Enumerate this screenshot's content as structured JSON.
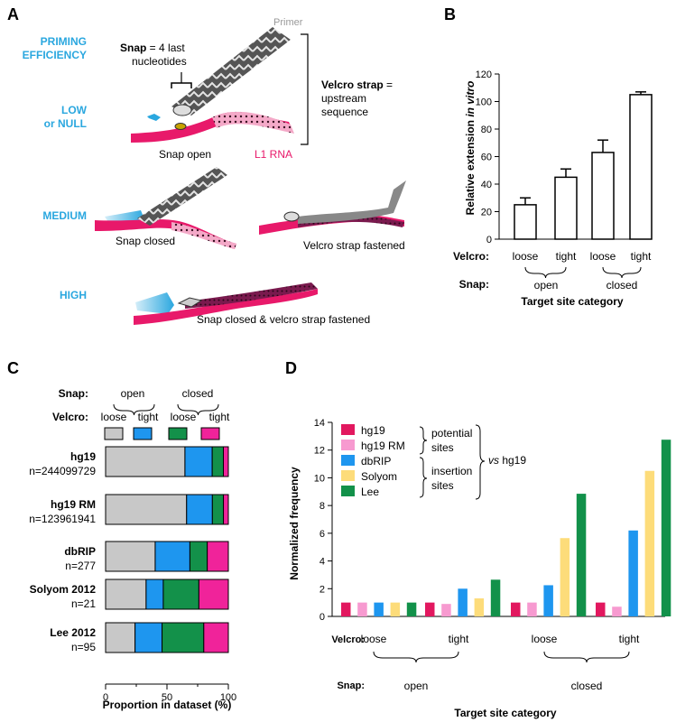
{
  "panel_a": {
    "letter": "A",
    "priming_label_1": "PRIMING",
    "priming_label_2": "EFFICIENCY",
    "low_label_1": "LOW",
    "low_label_2": "or NULL",
    "medium_label": "MEDIUM",
    "high_label": "HIGH",
    "snap_note_bold": "Snap",
    "snap_note_rest": " = 4 last",
    "snap_note_line2": "nucleotides",
    "primer_label": "Primer",
    "velcro_note_bold": "Velcro strap",
    "velcro_note_rest": " =",
    "velcro_note_line2": "upstream",
    "velcro_note_line3": "sequence",
    "snap_open_label": "Snap open",
    "l1_rna_label": "L1 RNA",
    "snap_closed_label": "Snap closed",
    "velcro_fastened_label": "Velcro strap fastened",
    "both_label": "Snap closed & velcro strap fastened",
    "colors": {
      "accent_blue": "#2aa7df",
      "rna_pink": "#e8196a",
      "primer_grey": "#777777"
    }
  },
  "panel_b": {
    "letter": "B"
  },
  "panel_c": {
    "letter": "C"
  },
  "panel_d": {
    "letter": "D"
  },
  "chart_data": [
    {
      "id": "B",
      "type": "bar",
      "categories": [
        "loose",
        "tight",
        "loose",
        "tight"
      ],
      "values": [
        25,
        45,
        63,
        105
      ],
      "errors": [
        5,
        6,
        9,
        2
      ],
      "ylabel_pre": "Relative extension ",
      "ylabel_italic": "in vitro",
      "xlabel": "Target site category",
      "ylim": [
        0,
        120
      ],
      "yticks": [
        0,
        20,
        40,
        60,
        80,
        100,
        120
      ],
      "row1_label": "Velcro:",
      "row2_label": "Snap:",
      "snap_groups": [
        "open",
        "closed"
      ],
      "bar_fill": "#ffffff",
      "bar_stroke": "#000000",
      "grid": false
    },
    {
      "id": "C",
      "type": "bar",
      "orientation": "horizontal-stacked-100",
      "snap_label": "Snap:",
      "velcro_label": "Velcro:",
      "snap_groups": [
        "open",
        "closed"
      ],
      "velcro_levels": [
        "loose",
        "tight",
        "loose",
        "tight"
      ],
      "segment_colors": [
        "#c8c8c8",
        "#1e96ef",
        "#13914a",
        "#f0239a"
      ],
      "rows": [
        {
          "name": "hg19",
          "n": "n=244099729",
          "values": [
            64,
            22,
            9,
            4
          ]
        },
        {
          "name": "hg19 RM",
          "n": "n=123961941",
          "values": [
            66,
            21,
            9,
            4
          ]
        },
        {
          "name": "dbRIP",
          "n": "n=277",
          "values": [
            40,
            28,
            14,
            17
          ]
        },
        {
          "name": "Solyom 2012",
          "n": "n=21",
          "values": [
            33,
            14,
            29,
            24
          ]
        },
        {
          "name": "Lee 2012",
          "n": "n=95",
          "values": [
            24,
            22,
            34,
            20
          ]
        }
      ],
      "xlabel": "Proportion in dataset (%)",
      "xlim": [
        0,
        100
      ],
      "xticks": [
        0,
        50,
        100
      ],
      "grid": false
    },
    {
      "id": "D",
      "type": "bar",
      "categories": [
        "loose",
        "tight",
        "loose",
        "tight"
      ],
      "snap_groups": [
        "open",
        "closed"
      ],
      "series": [
        {
          "name": "hg19",
          "color": "#e2185f",
          "values": [
            1.0,
            1.0,
            1.0,
            1.0
          ]
        },
        {
          "name": "hg19 RM",
          "color": "#f79ad0",
          "values": [
            1.0,
            0.9,
            1.0,
            0.7
          ]
        },
        {
          "name": "dbRIP",
          "color": "#1e96ef",
          "values": [
            1.0,
            2.0,
            2.25,
            6.2
          ]
        },
        {
          "name": "Solyom",
          "color": "#fddc7a",
          "values": [
            1.0,
            1.3,
            5.65,
            10.5
          ]
        },
        {
          "name": "Lee",
          "color": "#12914a",
          "values": [
            1.0,
            2.65,
            8.85,
            12.75
          ]
        }
      ],
      "legend_group_1": [
        "potential",
        "sites"
      ],
      "legend_group_2": [
        "insertion",
        "sites"
      ],
      "legend_vs_italic": "vs",
      "legend_vs_rest": " hg19",
      "legend_position": "top-left",
      "ylabel": "Normalized frequency",
      "xlabel": "Target site category",
      "row1_label": "Velcro:",
      "row2_label": "Snap:",
      "ylim": [
        0,
        14
      ],
      "yticks": [
        0,
        2,
        4,
        6,
        8,
        10,
        12,
        14
      ],
      "grid": false
    }
  ]
}
